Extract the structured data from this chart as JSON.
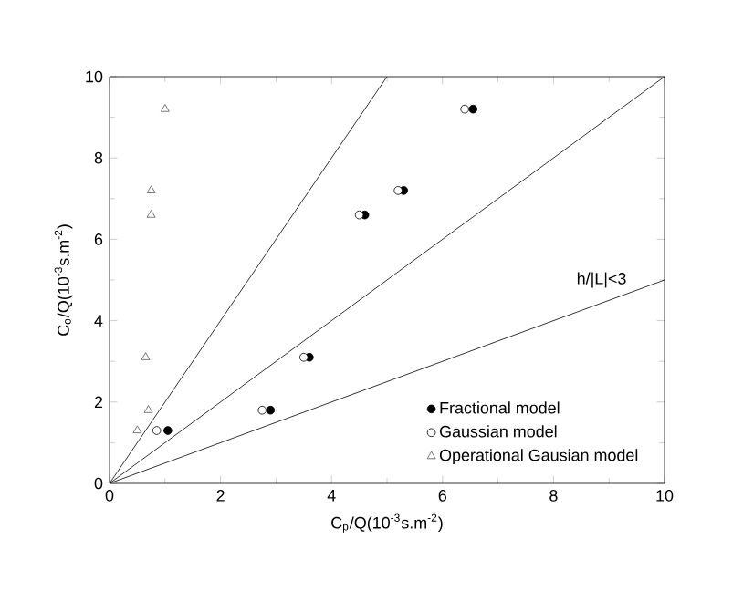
{
  "chart_data": {
    "type": "scatter",
    "xlabel": "C$_{p}$/Q(10$^{-3}$s.m$^{-2}$)",
    "ylabel": "C$_{o}$/Q(10$^{-3}$s.m$^{-2}$)",
    "xlim": [
      0,
      10
    ],
    "ylim": [
      0,
      10
    ],
    "xticks": [
      0,
      2,
      4,
      6,
      8,
      10
    ],
    "yticks": [
      0,
      2,
      4,
      6,
      8,
      10
    ],
    "grid": false,
    "legend": "bottom right",
    "annotations": [
      "h/|L|<3"
    ],
    "series": [
      {
        "name": "Fractional model",
        "color": "#000000",
        "marker": "circle",
        "x": [
          1.05,
          2.9,
          3.6,
          4.6,
          5.3,
          6.55
        ],
        "values": [
          1.3,
          1.8,
          3.1,
          6.6,
          7.2,
          9.2
        ]
      },
      {
        "name": "Gaussian model",
        "color": "#000000",
        "marker": "circle",
        "x": [
          0.85,
          2.75,
          3.5,
          4.5,
          5.2,
          6.4
        ],
        "values": [
          1.3,
          1.8,
          3.1,
          6.6,
          7.2,
          9.2
        ]
      },
      {
        "name": "Operational Gausian model",
        "color": "#555555",
        "marker": "triangle",
        "x": [
          0.5,
          0.7,
          0.65,
          0.75,
          0.75,
          1.0
        ],
        "values": [
          1.3,
          1.8,
          3.1,
          6.6,
          7.2,
          9.2
        ]
      },
      {
        "type": "line",
        "color": "#000000",
        "marker": "none",
        "line_style": "solid",
        "x": [
          0,
          5
        ],
        "values": [
          0,
          10
        ]
      },
      {
        "type": "line",
        "color": "#000000",
        "marker": "none",
        "line_style": "solid",
        "x": [
          0,
          10
        ],
        "values": [
          0,
          10
        ]
      },
      {
        "type": "line",
        "color": "#000000",
        "marker": "none",
        "line_style": "solid",
        "x": [
          0,
          10
        ],
        "values": [
          0,
          5
        ]
      }
    ]
  }
}
